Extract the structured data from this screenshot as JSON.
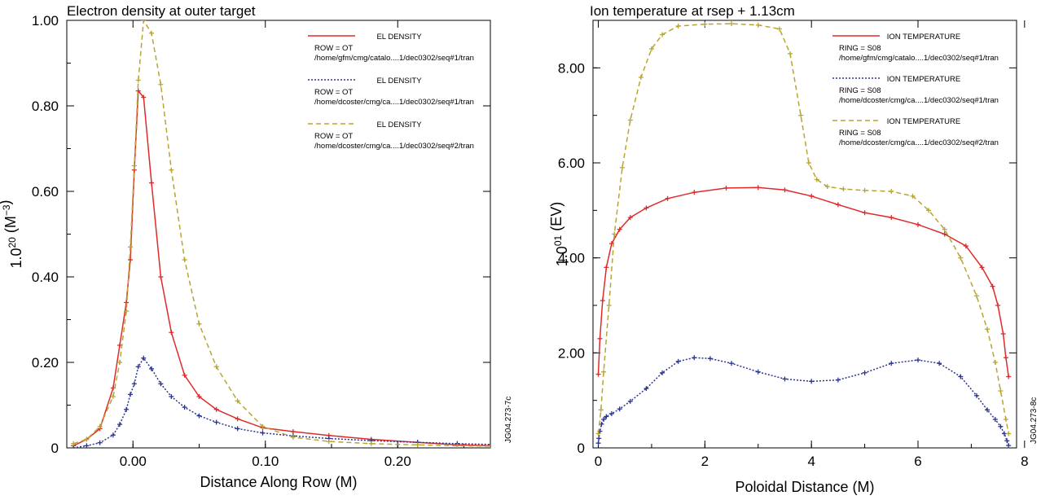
{
  "chart_data": [
    {
      "type": "line",
      "title": "Electron density at outer target",
      "xlabel": "Distance Along Row (M)",
      "ylabel_base": "1.0",
      "ylabel_exp": "20",
      "ylabel_unit": " (M",
      "ylabel_unit_exp": "−3",
      "ylabel_close": ")",
      "xlim": [
        -0.05,
        0.27
      ],
      "ylim": [
        0,
        1.0
      ],
      "xticks": [
        {
          "v": 0.0,
          "label": "0.00"
        },
        {
          "v": 0.1,
          "label": "0.10"
        },
        {
          "v": 0.2,
          "label": "0.20"
        }
      ],
      "yticks": [
        {
          "v": 0,
          "label": "0"
        },
        {
          "v": 0.2,
          "label": "0.20"
        },
        {
          "v": 0.4,
          "label": "0.40"
        },
        {
          "v": 0.6,
          "label": "0.60"
        },
        {
          "v": 0.8,
          "label": "0.80"
        },
        {
          "v": 1.0,
          "label": "1.00"
        }
      ],
      "series": [
        {
          "name": "EL DENSITY",
          "sub1": "ROW = OT",
          "sub2": "/home/gfm/cmg/catalo....1/dec0302/seq#1/tran",
          "color": "#e02a2a",
          "dash": "",
          "x": [
            -0.045,
            -0.035,
            -0.025,
            -0.015,
            -0.01,
            -0.005,
            -0.002,
            0.001,
            0.004,
            0.008,
            0.014,
            0.021,
            0.029,
            0.039,
            0.05,
            0.063,
            0.079,
            0.098,
            0.121,
            0.148,
            0.18,
            0.215,
            0.245,
            0.27
          ],
          "y": [
            0.005,
            0.02,
            0.045,
            0.14,
            0.24,
            0.34,
            0.44,
            0.65,
            0.835,
            0.82,
            0.62,
            0.4,
            0.27,
            0.17,
            0.12,
            0.09,
            0.068,
            0.047,
            0.038,
            0.029,
            0.02,
            0.013,
            0.007,
            0.005
          ]
        },
        {
          "name": "EL DENSITY",
          "sub1": "ROW = OT",
          "sub2": "/home/dcoster/cmg/ca....1/dec0302/seq#1/tran",
          "color": "#2b3490",
          "dash": "2,2",
          "x": [
            -0.045,
            -0.035,
            -0.025,
            -0.015,
            -0.01,
            -0.005,
            -0.002,
            0.001,
            0.004,
            0.008,
            0.014,
            0.021,
            0.029,
            0.039,
            0.05,
            0.063,
            0.079,
            0.098,
            0.121,
            0.148,
            0.18,
            0.215,
            0.245,
            0.27
          ],
          "y": [
            0.0,
            0.005,
            0.012,
            0.03,
            0.055,
            0.09,
            0.125,
            0.15,
            0.19,
            0.21,
            0.185,
            0.15,
            0.12,
            0.095,
            0.075,
            0.06,
            0.045,
            0.035,
            0.028,
            0.022,
            0.017,
            0.013,
            0.01,
            0.008
          ]
        },
        {
          "name": "EL DENSITY",
          "sub1": "ROW = OT",
          "sub2": "/home/dcoster/cmg/ca....1/dec0302/seq#2/tran",
          "color": "#b8a531",
          "dash": "6,4",
          "x": [
            -0.045,
            -0.035,
            -0.025,
            -0.015,
            -0.01,
            -0.005,
            -0.002,
            0.001,
            0.004,
            0.008,
            0.014,
            0.021,
            0.029,
            0.039,
            0.05,
            0.063,
            0.079,
            0.098,
            0.121,
            0.148,
            0.18,
            0.215,
            0.245,
            0.27
          ],
          "y": [
            0.01,
            0.02,
            0.05,
            0.12,
            0.2,
            0.32,
            0.47,
            0.66,
            0.86,
            1.0,
            0.97,
            0.85,
            0.65,
            0.44,
            0.29,
            0.19,
            0.11,
            0.05,
            0.025,
            0.015,
            0.01,
            0.007,
            0.005,
            0.004
          ]
        }
      ],
      "watermark": "JG04.273-7c"
    },
    {
      "type": "line",
      "title": "Ion temperature at rsep + 1.13cm",
      "xlabel": "Poloidal Distance (M)",
      "ylabel_base": "1.0",
      "ylabel_exp": "01",
      "ylabel_unit": " (EV)",
      "ylabel_unit_exp": "",
      "ylabel_close": "",
      "xlim": [
        -0.1,
        7.85
      ],
      "ylim": [
        0,
        9.0
      ],
      "xticks": [
        {
          "v": 0,
          "label": "0"
        },
        {
          "v": 2,
          "label": "2"
        },
        {
          "v": 4,
          "label": "4"
        },
        {
          "v": 6,
          "label": "6"
        },
        {
          "v": 8,
          "label": "8"
        }
      ],
      "yticks": [
        {
          "v": 0,
          "label": "0"
        },
        {
          "v": 2,
          "label": "2.00"
        },
        {
          "v": 4,
          "label": "4.00"
        },
        {
          "v": 6,
          "label": "6.00"
        },
        {
          "v": 8,
          "label": "8.00"
        }
      ],
      "series": [
        {
          "name": "ION TEMPERATURE",
          "sub1": "RING = S08",
          "sub2": "/home/gfm/cmg/catalo....1/dec0302/seq#1/tran",
          "color": "#e02a2a",
          "dash": "",
          "x": [
            0.0,
            0.03,
            0.08,
            0.15,
            0.25,
            0.4,
            0.6,
            0.9,
            1.3,
            1.8,
            2.4,
            3.0,
            3.5,
            4.0,
            4.5,
            5.0,
            5.5,
            6.0,
            6.5,
            6.9,
            7.2,
            7.4,
            7.5,
            7.6,
            7.65,
            7.7
          ],
          "y": [
            1.55,
            2.3,
            3.1,
            3.8,
            4.3,
            4.6,
            4.85,
            5.05,
            5.25,
            5.38,
            5.47,
            5.48,
            5.43,
            5.3,
            5.12,
            4.95,
            4.85,
            4.7,
            4.5,
            4.25,
            3.8,
            3.4,
            3.0,
            2.4,
            1.9,
            1.5
          ]
        },
        {
          "name": "ION TEMPERATURE",
          "sub1": "RING = S08",
          "sub2": "/home/dcoster/cmg/ca....1/dec0302/seq#1/tran",
          "color": "#2b3490",
          "dash": "2,2",
          "x": [
            0.0,
            0.01,
            0.03,
            0.06,
            0.1,
            0.15,
            0.25,
            0.4,
            0.6,
            0.9,
            1.2,
            1.5,
            1.8,
            2.1,
            2.5,
            3.0,
            3.5,
            4.0,
            4.5,
            5.0,
            5.5,
            6.0,
            6.4,
            6.8,
            7.1,
            7.3,
            7.45,
            7.55,
            7.62,
            7.67,
            7.7
          ],
          "y": [
            0.1,
            0.2,
            0.35,
            0.5,
            0.6,
            0.66,
            0.72,
            0.82,
            0.98,
            1.25,
            1.58,
            1.82,
            1.9,
            1.88,
            1.78,
            1.6,
            1.45,
            1.4,
            1.43,
            1.58,
            1.78,
            1.85,
            1.78,
            1.5,
            1.1,
            0.8,
            0.6,
            0.45,
            0.3,
            0.15,
            0.05
          ]
        },
        {
          "name": "ION TEMPERATURE",
          "sub1": "RING = S08",
          "sub2": "/home/dcoster/cmg/ca....1/dec0302/seq#2/tran",
          "color": "#b8a531",
          "dash": "6,4",
          "x": [
            0.0,
            0.05,
            0.1,
            0.2,
            0.3,
            0.45,
            0.6,
            0.8,
            1.0,
            1.2,
            1.5,
            2.0,
            2.5,
            3.0,
            3.4,
            3.6,
            3.8,
            3.95,
            4.1,
            4.3,
            4.6,
            5.0,
            5.5,
            5.9,
            6.2,
            6.5,
            6.8,
            7.1,
            7.3,
            7.45,
            7.55,
            7.65,
            7.7
          ],
          "y": [
            0.3,
            0.8,
            1.6,
            3.0,
            4.5,
            5.9,
            6.9,
            7.8,
            8.4,
            8.7,
            8.88,
            8.92,
            8.93,
            8.9,
            8.82,
            8.3,
            7.0,
            6.0,
            5.65,
            5.5,
            5.45,
            5.42,
            5.4,
            5.3,
            5.0,
            4.6,
            4.0,
            3.2,
            2.5,
            1.8,
            1.2,
            0.6,
            0.3
          ]
        }
      ],
      "watermark": "JG04.273-8c"
    }
  ]
}
